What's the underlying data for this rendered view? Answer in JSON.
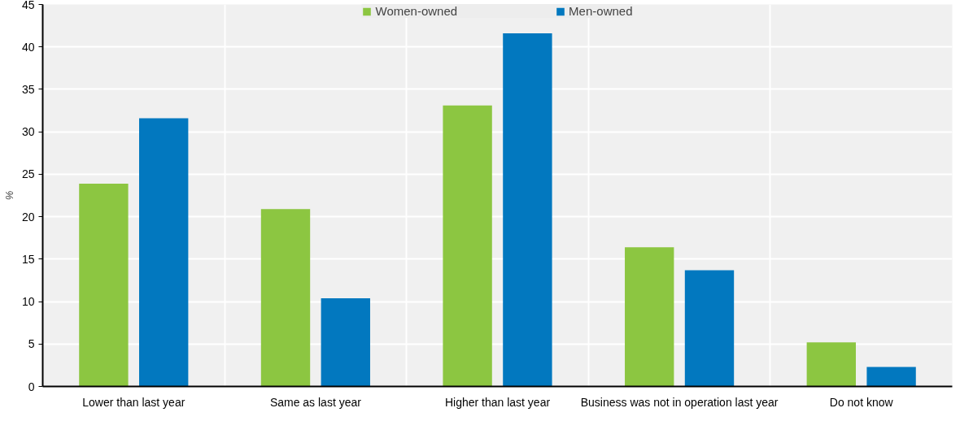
{
  "chart_data": {
    "type": "bar",
    "ylabel": "%",
    "categories": [
      "Lower than last year",
      "Same as last year",
      "Higher than last year",
      "Business was not in operation last year",
      "Do not know"
    ],
    "series": [
      {
        "name": "Women-owned",
        "color": "#8cc641",
        "values": [
          23.9,
          20.9,
          33.1,
          16.4,
          5.2
        ]
      },
      {
        "name": "Men-owned",
        "color": "#0278bf",
        "values": [
          31.6,
          10.4,
          41.6,
          13.7,
          2.3
        ]
      }
    ],
    "ylim": [
      0,
      45
    ],
    "yticks": [
      0,
      5,
      10,
      15,
      20,
      25,
      30,
      35,
      40,
      45
    ],
    "grid": true,
    "legend": "top"
  }
}
